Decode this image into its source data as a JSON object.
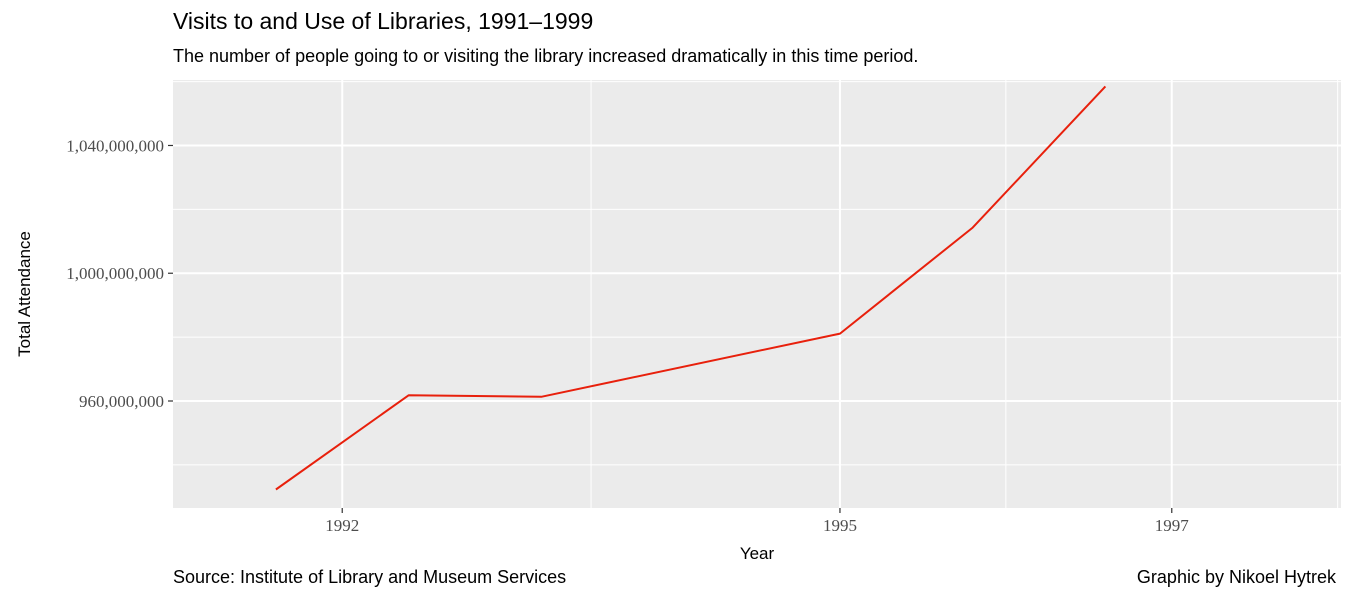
{
  "header": {
    "title": "Visits to and Use of Libraries, 1991–1999",
    "subtitle": "The number of people going to or visiting the library increased dramatically in this time period."
  },
  "footer": {
    "source": "Source: Institute of Library and Museum Services",
    "credit": "Graphic by Nikoel Hytrek"
  },
  "colors": {
    "panel_background": "#ebebeb",
    "grid": "#ffffff",
    "line": "#e8200c",
    "tick_text": "#4d4d4d"
  },
  "chart_data": {
    "type": "line",
    "title": "Visits to and Use of Libraries, 1991–1999",
    "subtitle": "The number of people going to or visiting the library increased dramatically in this time period.",
    "xlabel": "Year",
    "ylabel": "Total Attendance",
    "x_ticks": [
      1992,
      1995,
      1997
    ],
    "x_tick_labels": [
      "1992",
      "1995",
      "1997"
    ],
    "y_ticks": [
      960000000,
      1000000000,
      1040000000
    ],
    "y_tick_labels": [
      "960,000,000",
      "1,000,000,000",
      "1,040,000,000"
    ],
    "xlim": [
      1990.98,
      1998.02
    ],
    "ylim": [
      926500000,
      1060500000
    ],
    "grid": true,
    "legend": "none",
    "series": [
      {
        "x": [
          1991.6,
          1992.4,
          1993.2,
          1995.0,
          1995.8,
          1996.6
        ],
        "y": [
          932300000,
          961800000,
          961300000,
          981100000,
          1014300000,
          1058500000
        ]
      }
    ]
  }
}
